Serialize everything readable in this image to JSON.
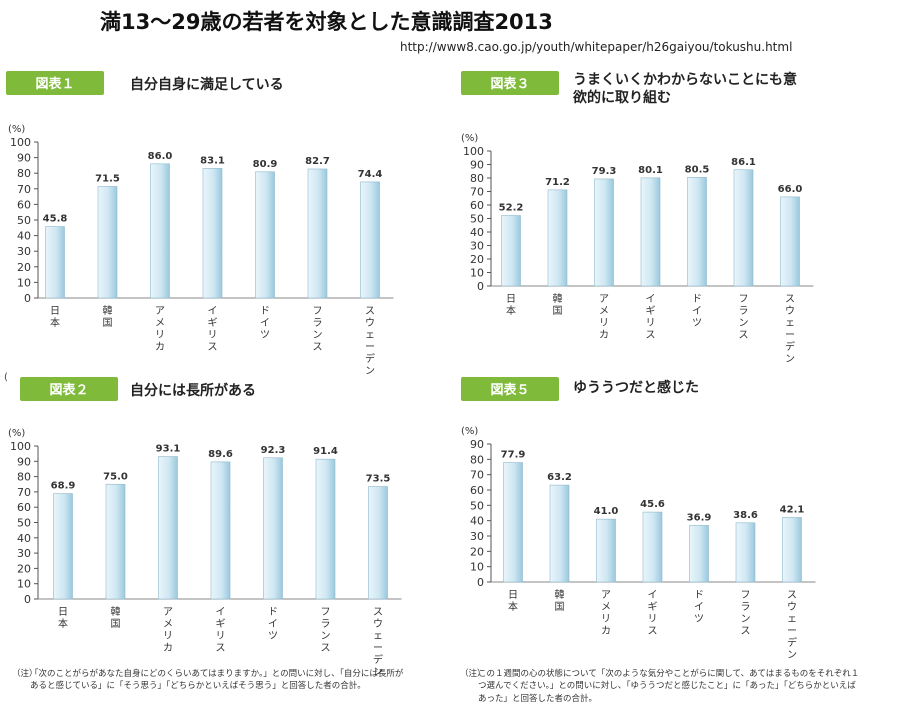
{
  "page": {
    "title": "満13〜29歳の若者を対象とした意識調査2013",
    "url": "http://www8.cao.go.jp/youth/whitepaper/h26gaiyou/tokushu.html",
    "stray_mark": "("
  },
  "colors": {
    "bar_light": "#e9f5fb",
    "bar_mid": "#cfe7f2",
    "bar_dark": "#9ac9de",
    "badge": "#7fba3a"
  },
  "chart_data": [
    {
      "type": "bar",
      "badge": "図表１",
      "title": "自分自身に満足している",
      "unit": "(%)",
      "ylim": [
        0,
        100
      ],
      "yticks": [
        0,
        10,
        20,
        30,
        40,
        50,
        60,
        70,
        80,
        90,
        100
      ],
      "categories": [
        "日本",
        "韓国",
        "アメリカ",
        "イギリス",
        "ドイツ",
        "フランス",
        "スウェーデン"
      ],
      "values": [
        45.8,
        71.5,
        86.0,
        83.1,
        80.9,
        82.7,
        74.4
      ],
      "value_labels": [
        "45.8",
        "71.5",
        "86.0",
        "83.1",
        "80.9",
        "82.7",
        "74.4"
      ]
    },
    {
      "type": "bar",
      "badge": "図表３",
      "title": "うまくいくかわからないことにも意欲的に取り組む",
      "title_lines": [
        "うまくいくかわからないことにも意",
        "欲的に取り組む"
      ],
      "unit": "(%)",
      "ylim": [
        0,
        100
      ],
      "yticks": [
        0,
        10,
        20,
        30,
        40,
        50,
        60,
        70,
        80,
        90,
        100
      ],
      "categories": [
        "日本",
        "韓国",
        "アメリカ",
        "イギリス",
        "ドイツ",
        "フランス",
        "スウェーデン"
      ],
      "values": [
        52.2,
        71.2,
        79.3,
        80.1,
        80.5,
        86.1,
        66.0
      ],
      "value_labels": [
        "52.2",
        "71.2",
        "79.3",
        "80.1",
        "80.5",
        "86.1",
        "66.0"
      ]
    },
    {
      "type": "bar",
      "badge": "図表２",
      "title": "自分には長所がある",
      "unit": "(%)",
      "ylim": [
        0,
        100
      ],
      "yticks": [
        0,
        10,
        20,
        30,
        40,
        50,
        60,
        70,
        80,
        90,
        100
      ],
      "categories": [
        "日本",
        "韓国",
        "アメリカ",
        "イギリス",
        "ドイツ",
        "フランス",
        "スウェーデン"
      ],
      "values": [
        68.9,
        75.0,
        93.1,
        89.6,
        92.3,
        91.4,
        73.5
      ],
      "value_labels": [
        "68.9",
        "75.0",
        "93.1",
        "89.6",
        "92.3",
        "91.4",
        "73.5"
      ]
    },
    {
      "type": "bar",
      "badge": "図表５",
      "title": "ゆううつだと感じた",
      "unit": "(%)",
      "ylim": [
        0,
        90
      ],
      "yticks": [
        0,
        10,
        20,
        30,
        40,
        50,
        60,
        70,
        80,
        90
      ],
      "categories": [
        "日本",
        "韓国",
        "アメリカ",
        "イギリス",
        "ドイツ",
        "フランス",
        "スウェーデン"
      ],
      "values": [
        77.9,
        63.2,
        41.0,
        45.6,
        36.9,
        38.6,
        42.1
      ],
      "value_labels": [
        "77.9",
        "63.2",
        "41.0",
        "45.6",
        "36.9",
        "38.6",
        "42.1"
      ]
    }
  ],
  "notes": {
    "left": {
      "mark": "（注）",
      "text": "「次のことがらがあなた自身にどのくらいあてはまりますか。」との問いに対し、「自分には長所があると感じている」に「そう思う」「どちらかといえばそう思う」と回答した者の合計。"
    },
    "right": {
      "mark": "（注）",
      "text": "この１週間の心の状態について「次のような気分やことがらに関して、あてはまるものをそれぞれ１つ選んでください。」との問いに対し、「ゆううつだと感じたこと」に「あった」「どちらかといえばあった」と回答した者の合計。"
    }
  }
}
